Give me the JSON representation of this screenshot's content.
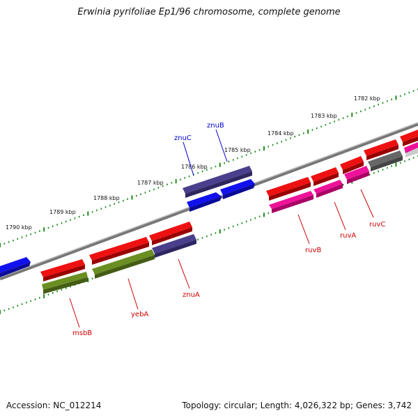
{
  "title": "Erwinia pyrifoliae Ep1/96 chromosome, complete genome",
  "accession": "Accession: NC_012214",
  "summary": "Topology: circular; Length: 4,026,322 bp; Genes: 3,742",
  "colors": {
    "backbone": "#888888",
    "tick_green": "#1a8a1a",
    "gene_red": "#ee1111",
    "gene_blue": "#1111ee",
    "gene_purple": "#4a3f8c",
    "gene_olive": "#6b8e23",
    "gene_magenta": "#ee1199",
    "gene_gray": "#666666",
    "label_red": "#cc0000",
    "label_blue": "#0000cc"
  },
  "ticks": [
    {
      "label": "1790 kbp"
    },
    {
      "label": "1789 kbp"
    },
    {
      "label": "1788 kbp"
    },
    {
      "label": "1787 kbp"
    },
    {
      "label": "1786 kbp"
    },
    {
      "label": "1785 kbp"
    },
    {
      "label": "1784 kbp"
    },
    {
      "label": "1783 kbp"
    },
    {
      "label": "1782 kbp"
    }
  ],
  "gene_labels": [
    {
      "name": "znuC",
      "color": "label_blue"
    },
    {
      "name": "znuB",
      "color": "label_blue"
    },
    {
      "name": "znuA",
      "color": "label_red"
    },
    {
      "name": "yebA",
      "color": "label_red"
    },
    {
      "name": "msbB",
      "color": "label_red"
    },
    {
      "name": "ruvB",
      "color": "label_red"
    },
    {
      "name": "ruvA",
      "color": "label_red"
    },
    {
      "name": "ruvC",
      "color": "label_red"
    }
  ]
}
